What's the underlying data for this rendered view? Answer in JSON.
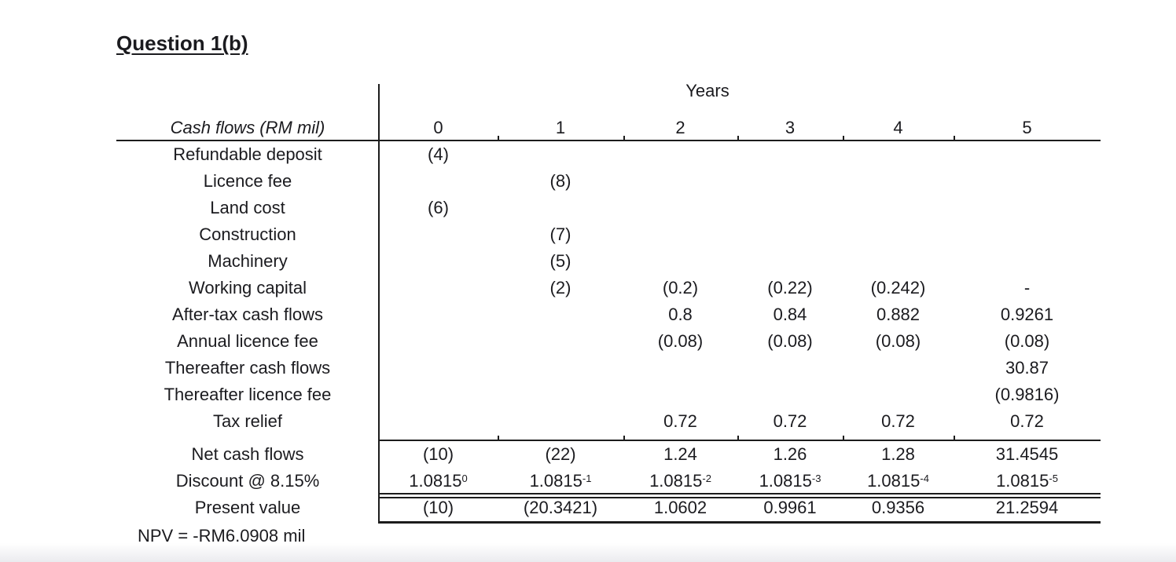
{
  "page": {
    "title": "Question 1(b)",
    "npv_note": "NPV = -RM6.0908 mil"
  },
  "colors": {
    "ink": "#1b1b1f",
    "background": "#ffffff"
  },
  "table": {
    "years_label": "Years",
    "row_header_label": "Cash flows (RM mil)",
    "year_columns": [
      "0",
      "1",
      "2",
      "3",
      "4",
      "5"
    ],
    "rows": [
      {
        "label": "Refundable deposit",
        "values": [
          "(4)",
          "",
          "",
          "",
          "",
          ""
        ]
      },
      {
        "label": "Licence fee",
        "values": [
          "",
          "(8)",
          "",
          "",
          "",
          ""
        ]
      },
      {
        "label": "Land cost",
        "values": [
          "(6)",
          "",
          "",
          "",
          "",
          ""
        ]
      },
      {
        "label": "Construction",
        "values": [
          "",
          "(7)",
          "",
          "",
          "",
          ""
        ]
      },
      {
        "label": "Machinery",
        "values": [
          "",
          "(5)",
          "",
          "",
          "",
          ""
        ]
      },
      {
        "label": "Working capital",
        "values": [
          "",
          "(2)",
          "(0.2)",
          "(0.22)",
          "(0.242)",
          "-"
        ]
      },
      {
        "label": "After-tax cash flows",
        "values": [
          "",
          "",
          "0.8",
          "0.84",
          "0.882",
          "0.9261"
        ]
      },
      {
        "label": "Annual licence fee",
        "values": [
          "",
          "",
          "(0.08)",
          "(0.08)",
          "(0.08)",
          "(0.08)"
        ]
      },
      {
        "label": "Thereafter cash flows",
        "values": [
          "",
          "",
          "",
          "",
          "",
          "30.87"
        ]
      },
      {
        "label": "Thereafter licence fee",
        "values": [
          "",
          "",
          "",
          "",
          "",
          "(0.9816)"
        ]
      },
      {
        "label": "Tax relief",
        "values": [
          "",
          "",
          "0.72",
          "0.72",
          "0.72",
          "0.72"
        ]
      }
    ],
    "net_cash_flows": {
      "label": "Net cash flows",
      "values": [
        "(10)",
        "(22)",
        "1.24",
        "1.26",
        "1.28",
        "31.4545"
      ]
    },
    "discount": {
      "label": "Discount @ 8.15%",
      "base": "1.0815",
      "exponents": [
        "0",
        "-1",
        "-2",
        "-3",
        "-4",
        "-5"
      ]
    },
    "present_value": {
      "label": "Present value",
      "values": [
        "(10)",
        "(20.3421)",
        "1.0602",
        "0.9961",
        "0.9356",
        "21.2594"
      ]
    }
  }
}
